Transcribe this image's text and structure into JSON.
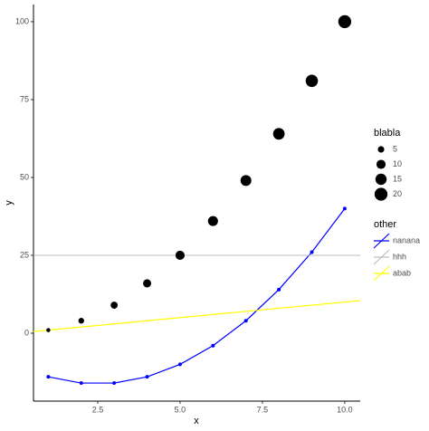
{
  "chart_data": {
    "type": "scatter",
    "x_label": "x",
    "y_label": "y",
    "x": [
      1,
      2,
      3,
      4,
      5,
      6,
      7,
      8,
      9,
      10
    ],
    "values": [
      1,
      4,
      9,
      16,
      25,
      36,
      49,
      64,
      81,
      100
    ],
    "sizes": [
      2,
      4,
      6,
      8,
      10,
      12,
      14,
      16,
      18,
      20
    ],
    "color": "#000000",
    "size_legend": {
      "title": "blabla",
      "values": [
        5,
        10,
        15,
        20
      ]
    },
    "legend_title": "other",
    "series": [
      {
        "name": "nanana",
        "kind": "line",
        "color": "#0000ff",
        "values": [
          -14,
          -16,
          -16,
          -14,
          -10,
          -4,
          4,
          14,
          26,
          40
        ]
      },
      {
        "name": "hhh",
        "kind": "hline",
        "color": "#bebebe",
        "value": 25
      },
      {
        "name": "abab",
        "kind": "abline",
        "color": "#ffff00",
        "slope": 1,
        "intercept": 0
      }
    ],
    "xlim": [
      0.55,
      10.47
    ],
    "ylim": [
      -21.8,
      105.5
    ],
    "xticks": [
      {
        "value": 2.5,
        "label": "2.5"
      },
      {
        "value": 5,
        "label": "5.0"
      },
      {
        "value": 7.5,
        "label": "7.5"
      },
      {
        "value": 10,
        "label": "10.0"
      }
    ],
    "yticks": [
      0,
      25,
      50,
      75,
      100
    ],
    "legend_position": "right"
  }
}
